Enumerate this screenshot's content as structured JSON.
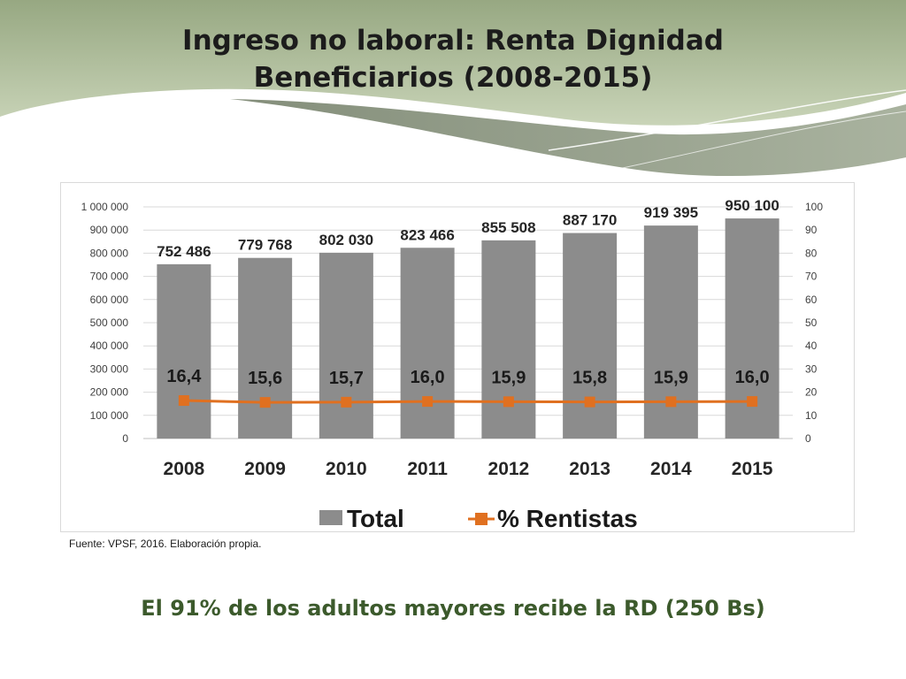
{
  "slide": {
    "title_line1": "Ingreso no laboral: Renta Dignidad",
    "title_line2": "Beneficiarios (2008-2015)",
    "source": "Fuente: VPSF, 2016. Elaboración propia.",
    "footer": "El 91% de los adultos mayores recibe la RD (250 Bs)"
  },
  "colors": {
    "bar": "#8c8c8c",
    "line": "#e07020",
    "title_text": "#1c1c1c",
    "footer_text": "#3c5a2c",
    "header_green": "#9fb08a"
  },
  "chart_data": {
    "type": "bar",
    "categories": [
      "2008",
      "2009",
      "2010",
      "2011",
      "2012",
      "2013",
      "2014",
      "2015"
    ],
    "series": [
      {
        "name": "Total",
        "type": "bar",
        "axis": "left",
        "values": [
          752486,
          779768,
          802030,
          823466,
          855508,
          887170,
          919395,
          950100
        ],
        "labels": [
          "752 486",
          "779 768",
          "802 030",
          "823 466",
          "855 508",
          "887 170",
          "919 395",
          "950 100"
        ]
      },
      {
        "name": "% Rentistas",
        "type": "line",
        "axis": "right",
        "values": [
          16.4,
          15.6,
          15.7,
          16.0,
          15.9,
          15.8,
          15.9,
          16.0
        ],
        "labels": [
          "16,4",
          "15,6",
          "15,7",
          "16,0",
          "15,9",
          "15,8",
          "15,9",
          "16,0"
        ]
      }
    ],
    "y_left": {
      "min": 0,
      "max": 1000000,
      "ticks": [
        "0",
        "100 000",
        "200 000",
        "300 000",
        "400 000",
        "500 000",
        "600 000",
        "700 000",
        "800 000",
        "900 000",
        "1 000 000"
      ]
    },
    "y_right": {
      "min": 0,
      "max": 100,
      "ticks": [
        "0",
        "10",
        "20",
        "30",
        "40",
        "50",
        "60",
        "70",
        "80",
        "90",
        "100"
      ]
    },
    "grid": true,
    "legend": "bottom"
  }
}
